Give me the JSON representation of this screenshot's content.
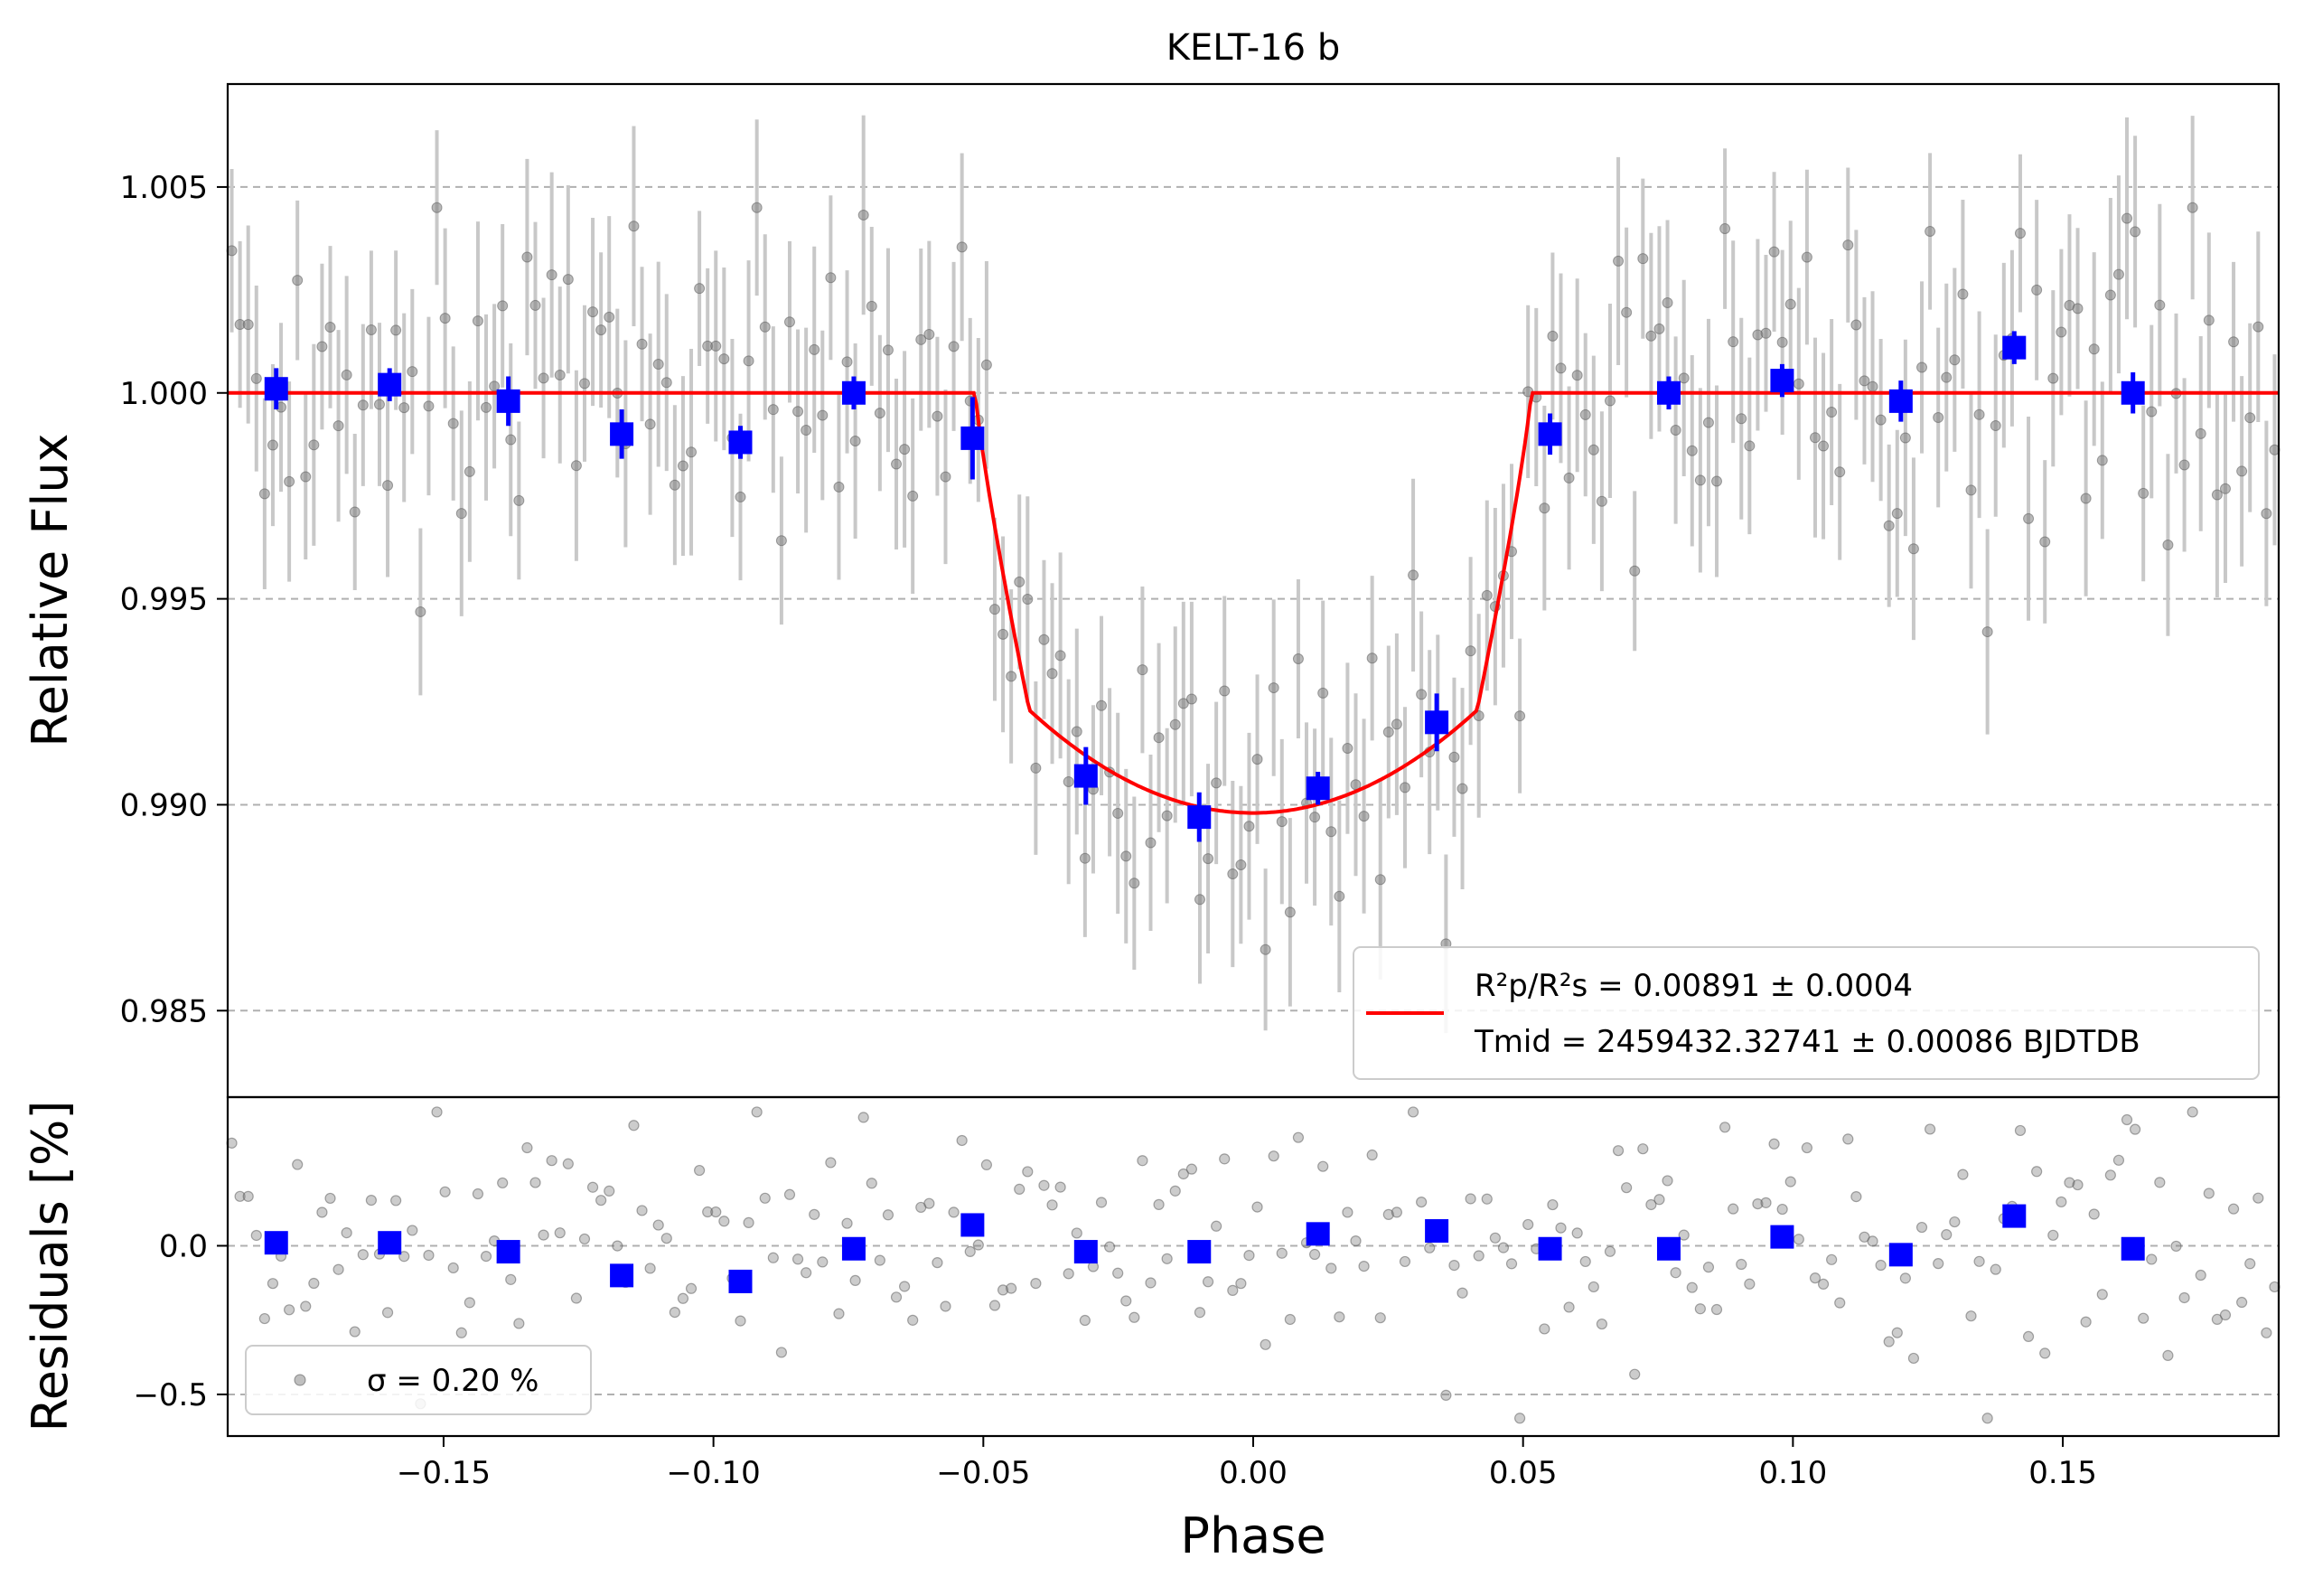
{
  "chart_data": {
    "type": "scatter",
    "title": "KELT-16 b",
    "xlabel": "Phase",
    "xlim": [
      -0.19,
      0.19
    ],
    "xticks": [
      -0.15,
      -0.1,
      -0.05,
      0.0,
      0.05,
      0.1,
      0.15
    ],
    "xtick_labels": [
      "−0.15",
      "−0.10",
      "−0.05",
      "0.00",
      "0.05",
      "0.10",
      "0.15"
    ],
    "grid": "y-dashed",
    "top_panel": {
      "ylabel": "Relative Flux",
      "ylim": [
        0.9829,
        1.0075
      ],
      "yticks": [
        0.985,
        0.99,
        0.995,
        1.0,
        1.005
      ],
      "ytick_labels": [
        "0.985",
        "0.990",
        "0.995",
        "1.000",
        "1.005"
      ],
      "legend": {
        "placement": "lower-right",
        "line1": "R²p/R²s = 0.00891 ± 0.0004",
        "line2": "Tmid = 2459432.32741 ± 0.00086 BJDTDB"
      },
      "model": {
        "depth": 0.0102,
        "t14_half": 0.0515,
        "t23_half": 0.0415,
        "color": "#ff0000"
      },
      "binned": {
        "x": [
          -0.181,
          -0.16,
          -0.138,
          -0.117,
          -0.095,
          -0.074,
          -0.052,
          -0.031,
          -0.01,
          0.012,
          0.034,
          0.055,
          0.077,
          0.098,
          0.12,
          0.141,
          0.163
        ],
        "y": [
          1.0001,
          1.0002,
          0.9998,
          0.999,
          0.9988,
          1.0,
          0.9989,
          0.9907,
          0.9897,
          0.9904,
          0.992,
          0.999,
          1.0,
          1.0003,
          0.9998,
          1.0011,
          1.0
        ],
        "err": [
          0.0005,
          0.0004,
          0.0006,
          0.0006,
          0.0004,
          0.0004,
          0.001,
          0.0007,
          0.0006,
          0.0004,
          0.0007,
          0.0005,
          0.0004,
          0.0004,
          0.0005,
          0.0004,
          0.0005
        ],
        "color": "#0000ff"
      },
      "raw_color": "#808080",
      "raw_count": 250,
      "raw_sigma": 0.002,
      "raw_err": 0.0022
    },
    "bottom_panel": {
      "ylabel": "Residuals [%]",
      "ylim": [
        -0.64,
        0.5
      ],
      "yticks": [
        -0.5,
        0.0
      ],
      "ytick_labels": [
        "−0.5",
        "0.0"
      ],
      "legend": {
        "placement": "lower-left",
        "label": "σ = 0.20 %"
      },
      "binned": {
        "x": [
          -0.181,
          -0.16,
          -0.138,
          -0.117,
          -0.095,
          -0.074,
          -0.052,
          -0.031,
          -0.01,
          0.012,
          0.034,
          0.055,
          0.077,
          0.098,
          0.12,
          0.141,
          0.163
        ],
        "y": [
          0.01,
          0.01,
          -0.02,
          -0.1,
          -0.12,
          -0.01,
          0.07,
          -0.02,
          -0.02,
          0.04,
          0.05,
          -0.01,
          -0.01,
          0.03,
          -0.03,
          0.1,
          -0.01
        ]
      }
    }
  }
}
